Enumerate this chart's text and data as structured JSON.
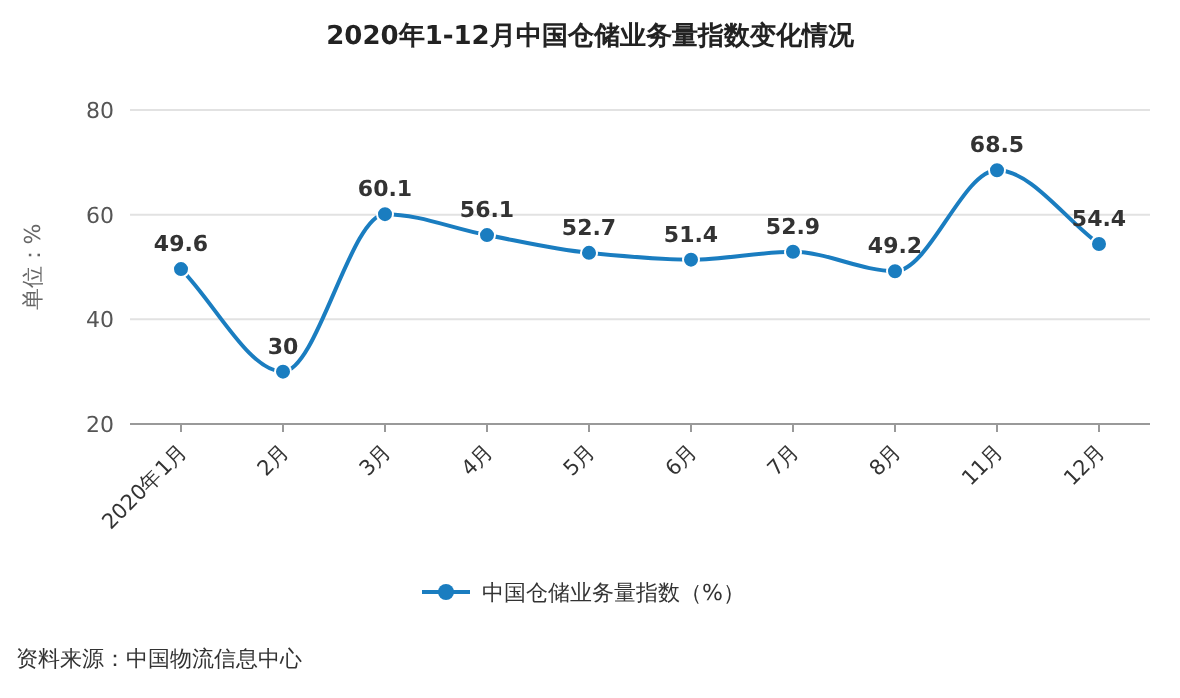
{
  "chart_data": {
    "type": "line",
    "title": "2020年1-12月中国仓储业务量指数变化情况",
    "ylabel": "单位：%",
    "categories": [
      "2020年1月",
      "2月",
      "3月",
      "4月",
      "5月",
      "6月",
      "7月",
      "8月",
      "11月",
      "12月"
    ],
    "series": [
      {
        "name": "中国仓储业务量指数（%）",
        "color": "#1a7dc0",
        "values": [
          49.6,
          30,
          60.1,
          56.1,
          52.7,
          51.4,
          52.9,
          49.2,
          68.5,
          54.4
        ]
      }
    ],
    "ylim": [
      20,
      80
    ],
    "yticks": [
      20,
      40,
      60,
      80
    ],
    "grid": "y",
    "legend": "bottom",
    "marker": "circle",
    "line_style": "solid",
    "data_labels": true,
    "annotations": [
      "资料来源：中国物流信息中心"
    ]
  }
}
